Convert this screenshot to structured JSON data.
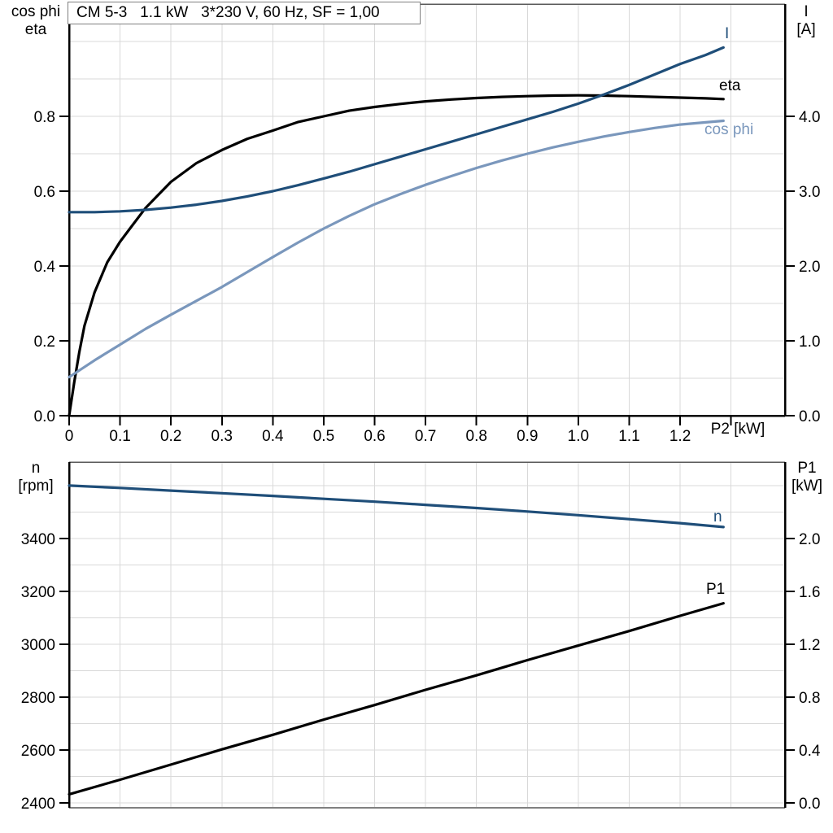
{
  "title": "CM 5-3   1.1 kW   3*230 V, 60 Hz, SF = 1,00",
  "colors": {
    "dark_blue": "#1f4e79",
    "light_blue": "#7a97bc",
    "black": "#000000",
    "grid": "#d9d9d9",
    "frame_gray": "#808080",
    "frame_top": "#595959"
  },
  "chart_data": [
    {
      "type": "line",
      "title": "CM 5-3   1.1 kW   3*230 V, 60 Hz, SF = 1,00",
      "ylabel_left_lines": [
        "cos phi",
        "eta"
      ],
      "ylabel_right_lines": [
        "I",
        "[A]"
      ],
      "xlabel": "P2 [kW]",
      "xlim": [
        0,
        1.406
      ],
      "ylim_left": [
        0,
        1.1
      ],
      "ylim_right": [
        0,
        5.5
      ],
      "x_ticks": [
        0,
        0.1,
        0.2,
        0.3,
        0.4,
        0.5,
        0.6,
        0.7,
        0.8,
        0.9,
        1.0,
        1.1,
        1.2,
        1.3
      ],
      "x_tick_labels": [
        "0",
        "0.1",
        "0.2",
        "0.3",
        "0.4",
        "0.5",
        "0.6",
        "0.7",
        "0.8",
        "0.9",
        "1.0",
        "1.1",
        "1.2",
        ""
      ],
      "left_ticks": [
        0,
        0.2,
        0.4,
        0.6,
        0.8
      ],
      "left_tick_labels": [
        "0.0",
        "0.2",
        "0.4",
        "0.6",
        "0.8"
      ],
      "right_ticks": [
        0,
        1,
        2,
        3,
        4
      ],
      "right_tick_labels": [
        "0.0",
        "1.0",
        "2.0",
        "3.0",
        "4.0"
      ],
      "x_grid": {
        "start": 0.1,
        "step": 0.1,
        "end": 1.3
      },
      "y_grid": {
        "start": 0.1,
        "step": 0.1,
        "end": 1.0
      },
      "bottom_axis_black": true,
      "series": [
        {
          "name": "eta",
          "label": "eta",
          "axis": "left",
          "color_key": "black",
          "x": [
            0,
            0.01,
            0.02,
            0.03,
            0.05,
            0.075,
            0.1,
            0.125,
            0.15,
            0.175,
            0.2,
            0.25,
            0.3,
            0.35,
            0.4,
            0.45,
            0.5,
            0.55,
            0.6,
            0.65,
            0.7,
            0.75,
            0.8,
            0.85,
            0.9,
            0.95,
            1.0,
            1.05,
            1.1,
            1.15,
            1.2,
            1.25,
            1.285
          ],
          "y": [
            0,
            0.09,
            0.17,
            0.24,
            0.33,
            0.41,
            0.465,
            0.51,
            0.555,
            0.59,
            0.625,
            0.675,
            0.71,
            0.74,
            0.762,
            0.785,
            0.8,
            0.815,
            0.825,
            0.833,
            0.84,
            0.845,
            0.849,
            0.852,
            0.854,
            0.8555,
            0.856,
            0.8555,
            0.854,
            0.852,
            0.85,
            0.848,
            0.846
          ]
        },
        {
          "name": "cos phi",
          "label": "cos phi",
          "axis": "left",
          "color_key": "light_blue",
          "x": [
            0,
            0.05,
            0.1,
            0.15,
            0.2,
            0.25,
            0.3,
            0.35,
            0.4,
            0.45,
            0.5,
            0.55,
            0.6,
            0.65,
            0.7,
            0.75,
            0.8,
            0.85,
            0.9,
            0.95,
            1.0,
            1.05,
            1.1,
            1.15,
            1.2,
            1.25,
            1.285
          ],
          "y": [
            0.103,
            0.148,
            0.19,
            0.232,
            0.27,
            0.307,
            0.344,
            0.384,
            0.424,
            0.463,
            0.5,
            0.534,
            0.565,
            0.592,
            0.617,
            0.64,
            0.662,
            0.682,
            0.7,
            0.717,
            0.732,
            0.746,
            0.758,
            0.769,
            0.778,
            0.784,
            0.788
          ]
        },
        {
          "name": "I",
          "label": "I",
          "axis": "right",
          "color_key": "dark_blue",
          "x": [
            0,
            0.05,
            0.1,
            0.15,
            0.2,
            0.25,
            0.3,
            0.35,
            0.4,
            0.45,
            0.5,
            0.55,
            0.6,
            0.65,
            0.7,
            0.75,
            0.8,
            0.85,
            0.9,
            0.95,
            1.0,
            1.05,
            1.1,
            1.15,
            1.2,
            1.25,
            1.285
          ],
          "y": [
            2.72,
            2.72,
            2.73,
            2.75,
            2.78,
            2.82,
            2.87,
            2.93,
            3.0,
            3.08,
            3.17,
            3.26,
            3.36,
            3.46,
            3.56,
            3.66,
            3.76,
            3.86,
            3.96,
            4.06,
            4.17,
            4.29,
            4.42,
            4.56,
            4.7,
            4.82,
            4.92
          ]
        }
      ]
    },
    {
      "type": "line",
      "title": "",
      "ylabel_left_lines": [
        "n",
        "[rpm]"
      ],
      "ylabel_right_lines": [
        "P1",
        "[kW]"
      ],
      "xlabel": "",
      "xlim": [
        0,
        1.406
      ],
      "ylim_left": [
        2381,
        3689
      ],
      "ylim_right": [
        -0.037,
        2.578
      ],
      "x_ticks": [],
      "x_tick_labels": [],
      "left_ticks": [
        2400,
        2600,
        2800,
        3000,
        3200,
        3400
      ],
      "left_tick_labels": [
        "2400",
        "2600",
        "2800",
        "3000",
        "3200",
        "3400"
      ],
      "right_ticks": [
        0,
        0.4,
        0.8,
        1.2,
        1.6,
        2.0
      ],
      "right_tick_labels": [
        "0.0",
        "0.4",
        "0.8",
        "1.2",
        "1.6",
        "2.0"
      ],
      "x_grid": {
        "start": 0.1,
        "step": 0.1,
        "end": 1.3
      },
      "y_grid": {
        "start": 2400,
        "step": 100,
        "end": 3600
      },
      "bottom_axis_black": false,
      "series": [
        {
          "name": "n",
          "label": "n",
          "axis": "left",
          "color_key": "dark_blue",
          "x": [
            0,
            0.1,
            0.2,
            0.3,
            0.4,
            0.5,
            0.6,
            0.7,
            0.8,
            0.9,
            1.0,
            1.1,
            1.2,
            1.285
          ],
          "y": [
            3600,
            3591,
            3581,
            3571,
            3561,
            3550,
            3539,
            3527,
            3515,
            3502,
            3488,
            3473,
            3458,
            3443
          ]
        },
        {
          "name": "P1",
          "label": "P1",
          "axis": "right",
          "color_key": "black",
          "x": [
            0,
            0.1,
            0.2,
            0.3,
            0.4,
            0.5,
            0.6,
            0.7,
            0.8,
            0.9,
            1.0,
            1.1,
            1.2,
            1.285
          ],
          "y": [
            0.065,
            0.175,
            0.29,
            0.405,
            0.515,
            0.63,
            0.74,
            0.855,
            0.965,
            1.08,
            1.19,
            1.3,
            1.415,
            1.51
          ]
        }
      ]
    }
  ]
}
